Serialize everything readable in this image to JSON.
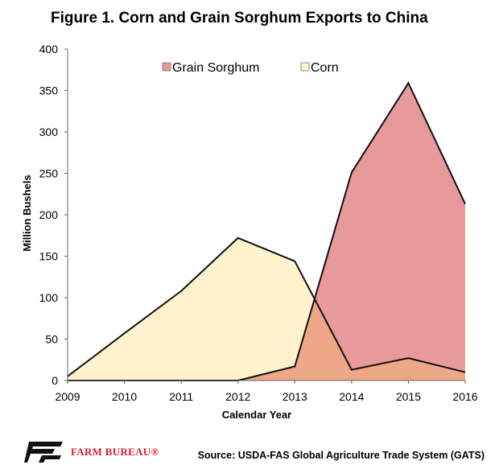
{
  "title": "Figure 1. Corn and Grain Sorghum Exports to China",
  "colors": {
    "sorghum_fill": "#e8999a",
    "corn_fill": "#fff2cc",
    "overlap_fill": "#eea787",
    "line": "#111111",
    "brand_red": "#d0202e"
  },
  "chart_data": {
    "type": "area",
    "xlabel": "Calendar Year",
    "ylabel": "Million Bushels",
    "x": [
      "2009",
      "2010",
      "2011",
      "2012",
      "2013",
      "2014",
      "2015",
      "2016"
    ],
    "ylim": [
      0,
      400
    ],
    "yticks": [
      0,
      50,
      100,
      150,
      200,
      250,
      300,
      350,
      400
    ],
    "grid": false,
    "legend_position": "top",
    "series": [
      {
        "name": "Grain Sorghum",
        "color": "#e8999a",
        "values": [
          0,
          0,
          0,
          0,
          17,
          251,
          359,
          213
        ]
      },
      {
        "name": "Corn",
        "color": "#fff2cc",
        "values": [
          5,
          57,
          108,
          172,
          144,
          13,
          27,
          10
        ]
      }
    ]
  },
  "footer": {
    "brand": "FARM BUREAU®",
    "source": "Source: USDA-FAS Global Agriculture Trade System (GATS)"
  }
}
